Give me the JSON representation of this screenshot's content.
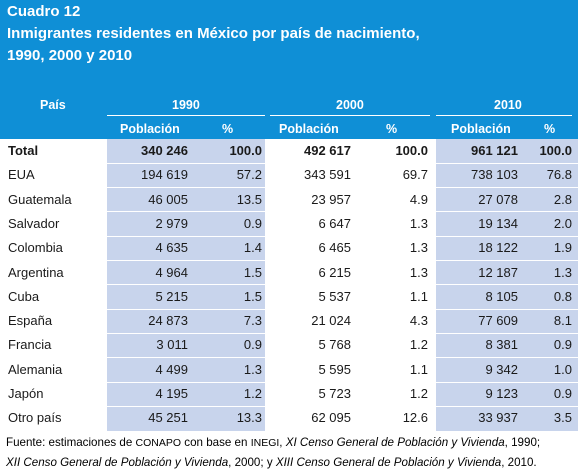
{
  "title": {
    "line1": "Cuadro 12",
    "line2": "Inmigrantes residentes en México por país de nacimiento,",
    "line3": "1990, 2000 y 2010"
  },
  "header": {
    "pais": "País",
    "years": [
      "1990",
      "2000",
      "2010"
    ],
    "poblacion": "Población",
    "pct": "%"
  },
  "rows": [
    {
      "country": "Total",
      "v1990": "340 246",
      "p1990": "100.0",
      "v2000": "492 617",
      "p2000": "100.0",
      "v2010": "961 121",
      "p2010": "100.0"
    },
    {
      "country": "EUA",
      "v1990": "194 619",
      "p1990": "57.2",
      "v2000": "343 591",
      "p2000": "69.7",
      "v2010": "738 103",
      "p2010": "76.8"
    },
    {
      "country": "Guatemala",
      "v1990": "46 005",
      "p1990": "13.5",
      "v2000": "23 957",
      "p2000": "4.9",
      "v2010": "27 078",
      "p2010": "2.8"
    },
    {
      "country": "Salvador",
      "v1990": "2 979",
      "p1990": "0.9",
      "v2000": "6 647",
      "p2000": "1.3",
      "v2010": "19 134",
      "p2010": "2.0"
    },
    {
      "country": "Colombia",
      "v1990": "4 635",
      "p1990": "1.4",
      "v2000": "6 465",
      "p2000": "1.3",
      "v2010": "18 122",
      "p2010": "1.9"
    },
    {
      "country": "Argentina",
      "v1990": "4 964",
      "p1990": "1.5",
      "v2000": "6 215",
      "p2000": "1.3",
      "v2010": "12 187",
      "p2010": "1.3"
    },
    {
      "country": "Cuba",
      "v1990": "5 215",
      "p1990": "1.5",
      "v2000": "5 537",
      "p2000": "1.1",
      "v2010": "8 105",
      "p2010": "0.8"
    },
    {
      "country": "España",
      "v1990": "24 873",
      "p1990": "7.3",
      "v2000": "21 024",
      "p2000": "4.3",
      "v2010": "77 609",
      "p2010": "8.1"
    },
    {
      "country": "Francia",
      "v1990": "3 011",
      "p1990": "0.9",
      "v2000": "5 768",
      "p2000": "1.2",
      "v2010": "8 381",
      "p2010": "0.9"
    },
    {
      "country": "Alemania",
      "v1990": "4 499",
      "p1990": "1.3",
      "v2000": "5 595",
      "p2000": "1.1",
      "v2010": "9 342",
      "p2010": "1.0"
    },
    {
      "country": "Japón",
      "v1990": "4 195",
      "p1990": "1.2",
      "v2000": "5 723",
      "p2000": "1.2",
      "v2010": "9 123",
      "p2010": "0.9"
    },
    {
      "country": "Otro país",
      "v1990": "45 251",
      "p1990": "13.3",
      "v2000": "62 095",
      "p2000": "12.6",
      "v2010": "33 937",
      "p2010": "3.5"
    }
  ],
  "footer": {
    "prefix": "Fuente: estimaciones de ",
    "conapo": "CONAPO",
    "mid": " con base en ",
    "inegi": "INEGI",
    "sep1": ", ",
    "censo11": "XI Censo General de Población y Vivienda",
    "y1990": ", 1990;",
    "censo12": "XII Censo General de Población y Vivienda",
    "y2000": ", 2000; y ",
    "censo13": "XIII Censo General de Población y Vivienda",
    "y2010": ", 2010."
  },
  "colors": {
    "header_blue": "#0f8fd6",
    "stripe": "#c8d4ec",
    "header_text": "#ffffff"
  }
}
